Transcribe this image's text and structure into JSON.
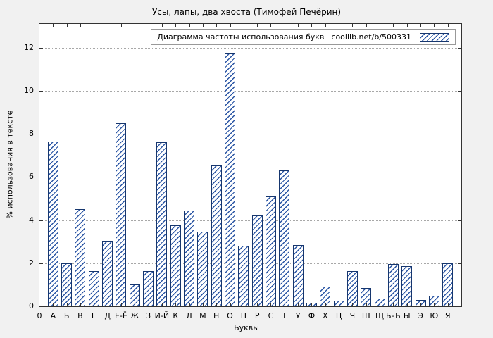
{
  "title": "Усы, лапы, два хвоста (Тимофей Печёрин)",
  "legend": {
    "label": "Диаграмма частоты использования букв",
    "source": "coollib.net/b/500331"
  },
  "axes": {
    "x_label": "Буквы",
    "y_label": "% использования в тексте",
    "origin_label": "0",
    "y_ticks": [
      0,
      2,
      4,
      6,
      8,
      10,
      12
    ]
  },
  "colors": {
    "background": "#f1f1f1",
    "plot_background": "#ffffff",
    "bar_border": "#16366e",
    "bar_hatch": "#2a55a4",
    "grid": "#a8a8a8",
    "axis": "#333333"
  },
  "chart_data": {
    "type": "bar",
    "title": "Усы, лапы, два хвоста (Тимофей Печёрин)",
    "xlabel": "Буквы",
    "ylabel": "% использования в тексте",
    "ylim": [
      0,
      13.1
    ],
    "grid": true,
    "legend_position": "top-right",
    "legend_label": "Диаграмма частоты использования букв coollib.net/b/500331",
    "categories": [
      "А",
      "Б",
      "В",
      "Г",
      "Д",
      "Е-Ё",
      "Ж",
      "З",
      "И-Й",
      "К",
      "Л",
      "М",
      "Н",
      "О",
      "П",
      "Р",
      "С",
      "Т",
      "У",
      "Ф",
      "Х",
      "Ц",
      "Ч",
      "Ш",
      "Щ",
      "Ь-Ъ",
      "Ы",
      "Э",
      "Ю",
      "Я"
    ],
    "values": [
      7.65,
      2.0,
      4.5,
      1.65,
      3.05,
      8.5,
      1.0,
      1.65,
      7.6,
      3.75,
      4.45,
      3.45,
      6.55,
      11.75,
      2.8,
      4.2,
      5.1,
      6.3,
      2.85,
      0.15,
      0.9,
      0.25,
      1.65,
      0.85,
      0.35,
      1.95,
      1.85,
      0.3,
      0.5,
      2.0
    ]
  }
}
